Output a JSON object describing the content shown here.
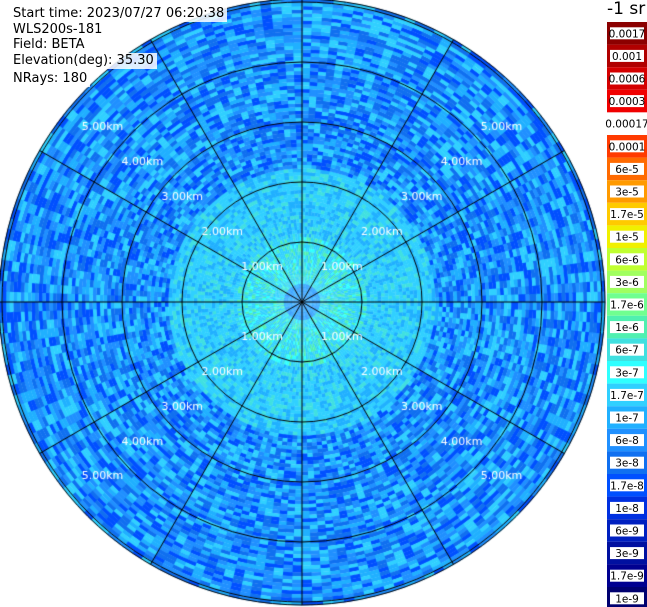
{
  "info": {
    "start_time": "Start time: 2023/07/27 06:20:38",
    "instrument": "WLS200s-181",
    "field": "Field: BETA",
    "elevation": "Elevation(deg): 35.30",
    "nrays": "NRays: 180"
  },
  "colorbar": {
    "unit": "-1 sr",
    "labels": [
      "0.0017",
      "0.001",
      "0.0006",
      "0.0003",
      "0.00017",
      "0.0001",
      "6e-5",
      "3e-5",
      "1.7e-5",
      "1e-5",
      "6e-6",
      "3e-6",
      "1.7e-6",
      "1e-6",
      "6e-7",
      "3e-7",
      "1.7e-7",
      "1e-7",
      "6e-8",
      "3e-8",
      "1.7e-8",
      "1e-8",
      "6e-9",
      "3e-9",
      "1.7e-9",
      "1e-9"
    ],
    "colors": [
      "#8b0000",
      "#b00000",
      "#d40000",
      "#f00000",
      "#ffffff",
      "#ff3a00",
      "#ff6a00",
      "#ff9a00",
      "#ffca00",
      "#f0f000",
      "#c0ff30",
      "#a0ff60",
      "#70ff90",
      "#50f0b0",
      "#40e0e0",
      "#30ffff",
      "#30d0ff",
      "#20b0ff",
      "#2090ff",
      "#1070f0",
      "#0050ff",
      "#0030e0",
      "#0020c0",
      "#0010a0",
      "#000090",
      "#000070"
    ]
  },
  "chart_data": {
    "type": "polar-ppi",
    "field": "BETA",
    "rings_km": [
      1,
      2,
      3,
      4,
      5
    ],
    "ring_labels": [
      "1.00km",
      "2.00km",
      "3.00km",
      "4.00km",
      "5.00km"
    ],
    "max_range_km": 5.05,
    "spokes_deg": [
      0,
      30,
      60,
      90,
      120,
      150,
      180,
      210,
      240,
      270,
      300,
      330
    ],
    "nrays": 180,
    "bins_per_ray": 84,
    "background_colors": [
      "#1070f0",
      "#2090ff",
      "#20b0ff",
      "#30d0ff",
      "#0050ff"
    ],
    "near_field_colors": [
      "#30d0ff",
      "#40e0e0",
      "#30ffff",
      "#50f0b0"
    ],
    "grid": true
  }
}
